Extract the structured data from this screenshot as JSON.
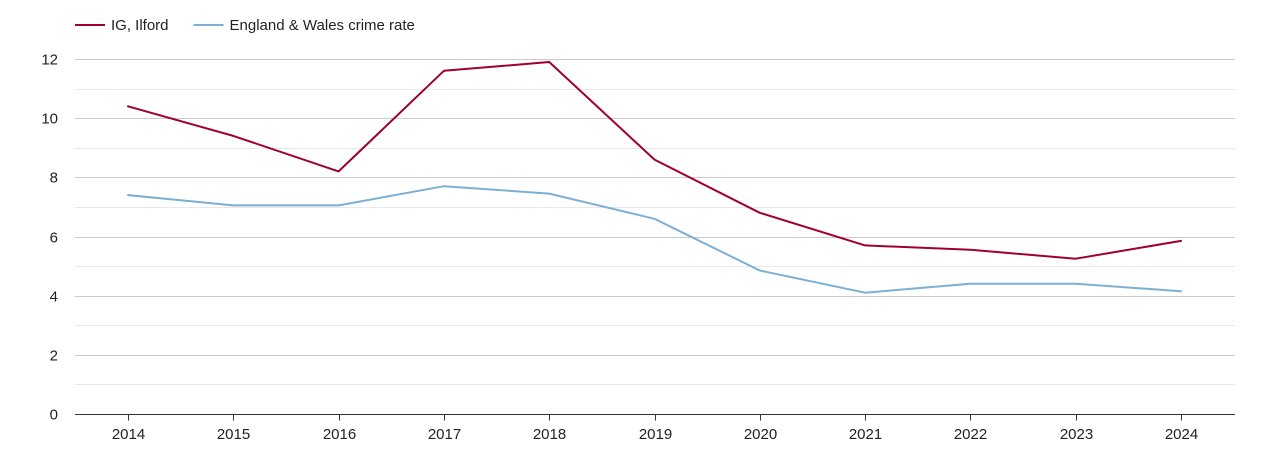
{
  "chart_data": {
    "type": "line",
    "title": "",
    "xlabel": "",
    "ylabel": "",
    "categories": [
      "2014",
      "2015",
      "2016",
      "2017",
      "2018",
      "2019",
      "2020",
      "2021",
      "2022",
      "2023",
      "2024"
    ],
    "ylim": [
      0,
      12
    ],
    "yticks": [
      0,
      2,
      4,
      6,
      8,
      10,
      12
    ],
    "grid": true,
    "legend_position": "top-left",
    "series": [
      {
        "name": "IG, Ilford",
        "color": "#a0002c",
        "values": [
          10.4,
          9.4,
          8.2,
          11.6,
          11.9,
          8.6,
          6.8,
          5.7,
          5.55,
          5.25,
          5.85
        ]
      },
      {
        "name": "England & Wales crime rate",
        "color": "#7bafd4",
        "values": [
          7.4,
          7.05,
          7.05,
          7.7,
          7.45,
          6.6,
          4.85,
          4.1,
          4.4,
          4.4,
          4.15
        ]
      }
    ]
  }
}
